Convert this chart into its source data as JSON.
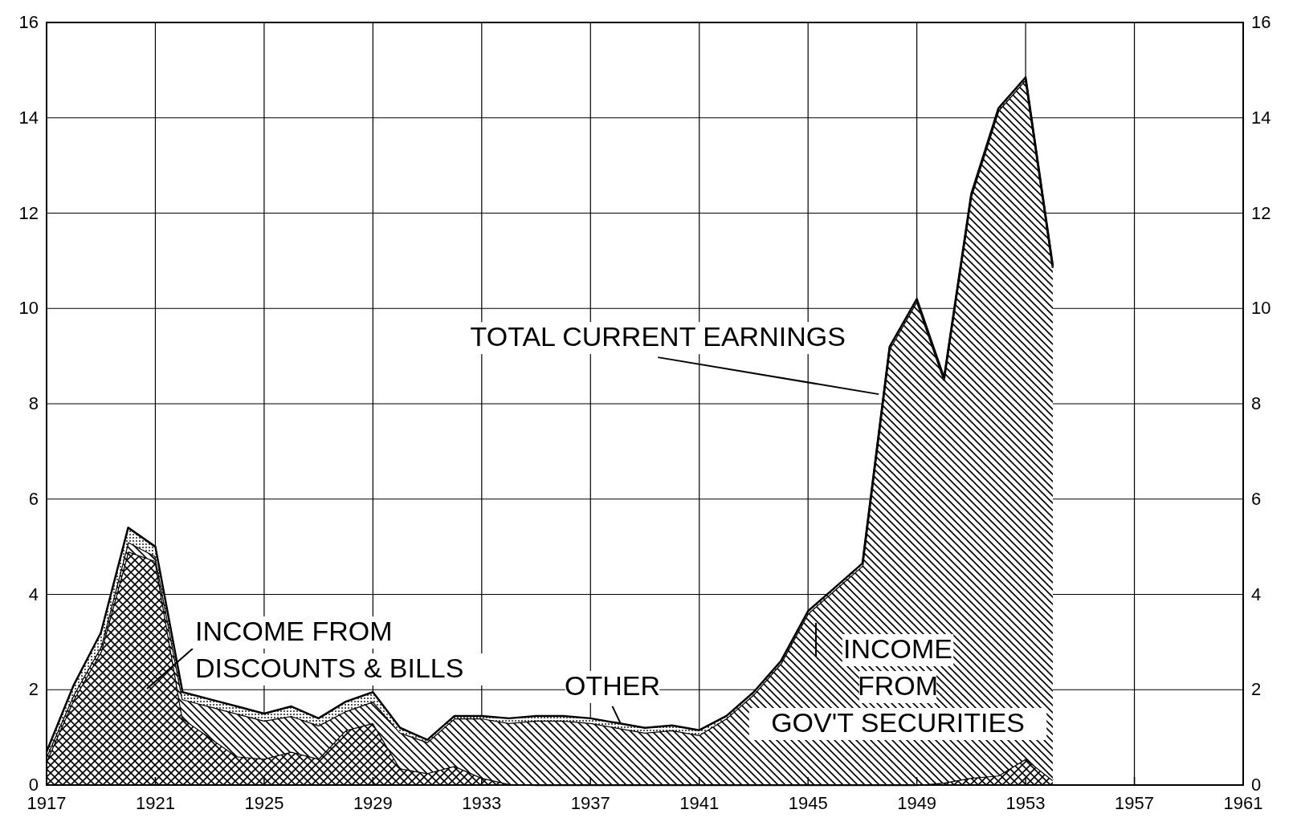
{
  "chart_data": {
    "type": "area",
    "stacked": true,
    "x": [
      1917,
      1918,
      1919,
      1920,
      1921,
      1922,
      1923,
      1924,
      1925,
      1926,
      1927,
      1928,
      1929,
      1930,
      1931,
      1932,
      1933,
      1934,
      1935,
      1936,
      1937,
      1938,
      1939,
      1940,
      1941,
      1942,
      1943,
      1944,
      1945,
      1946,
      1947,
      1948,
      1949,
      1950,
      1951,
      1952,
      1953,
      1954
    ],
    "series": [
      {
        "color": "#000000",
        "values": [
          0.5,
          1.8,
          2.8,
          4.9,
          4.7,
          1.4,
          1.0,
          0.6,
          0.55,
          0.7,
          0.55,
          1.15,
          1.3,
          0.35,
          0.25,
          0.4,
          0.15,
          0.02,
          0,
          0,
          0,
          0,
          0,
          0,
          0,
          0,
          0,
          0,
          0,
          0,
          0,
          0,
          0,
          0.05,
          0.15,
          0.2,
          0.55,
          0.1
        ]
      },
      {
        "color": "#000000",
        "values": [
          0.1,
          0.1,
          0.1,
          0.2,
          0.1,
          0.4,
          0.65,
          0.9,
          0.8,
          0.75,
          0.7,
          0.4,
          0.45,
          0.75,
          0.65,
          1.0,
          1.25,
          1.28,
          1.35,
          1.35,
          1.3,
          1.2,
          1.1,
          1.15,
          1.05,
          1.4,
          1.9,
          2.55,
          3.6,
          4.1,
          4.6,
          9.15,
          10.15,
          8.45,
          12.2,
          13.95,
          14.25,
          10.75
        ]
      },
      {
        "color": "#000000",
        "values": [
          0.1,
          0.2,
          0.3,
          0.3,
          0.2,
          0.15,
          0.15,
          0.15,
          0.15,
          0.2,
          0.15,
          0.2,
          0.2,
          0.1,
          0.05,
          0.05,
          0.05,
          0.1,
          0.1,
          0.1,
          0.1,
          0.1,
          0.1,
          0.1,
          0.1,
          0.05,
          0.05,
          0.05,
          0.05,
          0.05,
          0.05,
          0.05,
          0.05,
          0.05,
          0.05,
          0.05,
          0.05,
          0.05
        ]
      }
    ],
    "xlim": [
      1917,
      1961
    ],
    "xticks": [
      1917,
      1921,
      1925,
      1929,
      1933,
      1937,
      1941,
      1945,
      1949,
      1953,
      1957,
      1961
    ],
    "ylim": [
      0,
      16
    ],
    "yticks": [
      0,
      2,
      4,
      6,
      8,
      10,
      12,
      14,
      16
    ],
    "y2lim": [
      0,
      16
    ],
    "y2ticks": [
      0,
      2,
      4,
      6,
      8,
      10,
      12,
      14,
      16
    ],
    "grid": true,
    "annotations": [
      {
        "text": "TOTAL  CURRENT  EARNINGS",
        "x": 1947.6,
        "y": 8.2
      },
      "INCOME  FROM\nDISCOUNTS & BILLS",
      {
        "text": "OTHER",
        "x": 1938.1,
        "y": 1.3
      },
      "INCOME\nFROM\nGOV'T  SECURITIES"
    ]
  }
}
